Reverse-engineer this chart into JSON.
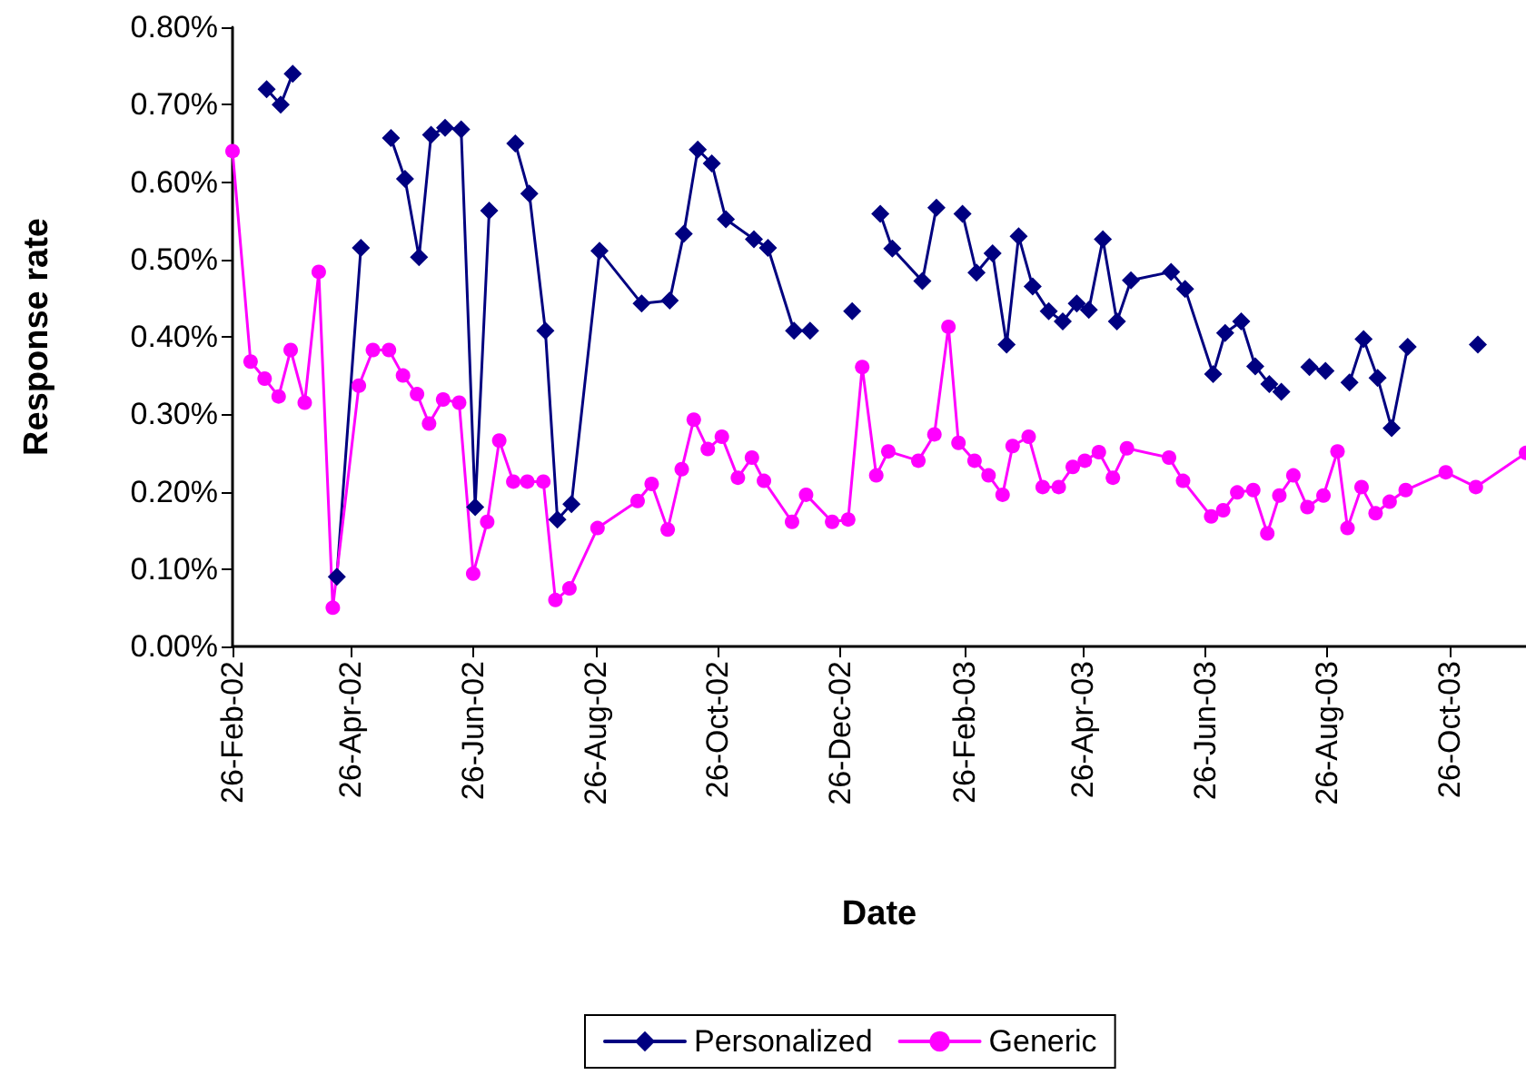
{
  "chart_data": {
    "type": "line",
    "xlabel": "Date",
    "ylabel": "Response rate",
    "grid": false,
    "legend": "bottom",
    "line_style": "solid",
    "xlim": [
      "2002-02-26",
      "2003-12-03"
    ],
    "xticks": [
      {
        "value": "2002-02-26",
        "label": "26-Feb-02"
      },
      {
        "value": "2002-04-26",
        "label": "26-Apr-02"
      },
      {
        "value": "2002-06-26",
        "label": "26-Jun-02"
      },
      {
        "value": "2002-08-26",
        "label": "26-Aug-02"
      },
      {
        "value": "2002-10-26",
        "label": "26-Oct-02"
      },
      {
        "value": "2002-12-26",
        "label": "26-Dec-02"
      },
      {
        "value": "2003-02-26",
        "label": "26-Feb-03"
      },
      {
        "value": "2003-04-26",
        "label": "26-Apr-03"
      },
      {
        "value": "2003-06-26",
        "label": "26-Jun-03"
      },
      {
        "value": "2003-08-26",
        "label": "26-Aug-03"
      },
      {
        "value": "2003-10-26",
        "label": "26-Oct-03"
      }
    ],
    "ylim": [
      0,
      0.8
    ],
    "yticks": [
      {
        "value": 0,
        "label": "0.00%"
      },
      {
        "value": 0.1,
        "label": "0.10%"
      },
      {
        "value": 0.2,
        "label": "0.20%"
      },
      {
        "value": 0.3,
        "label": "0.30%"
      },
      {
        "value": 0.4,
        "label": "0.40%"
      },
      {
        "value": 0.5,
        "label": "0.50%"
      },
      {
        "value": 0.6,
        "label": "0.60%"
      },
      {
        "value": 0.7,
        "label": "0.70%"
      },
      {
        "value": 0.8,
        "label": "0.80%"
      }
    ],
    "series": [
      {
        "name": "Personalized",
        "color": "#000080",
        "marker": "diamond",
        "x": [
          "2002-03-15",
          "2002-03-22",
          "2002-03-28",
          "2002-04-10",
          "2002-04-19",
          "2002-05-01",
          "2002-05-08",
          "2002-05-16",
          "2002-05-23",
          "2002-05-30",
          "2002-06-05",
          "2002-06-12",
          "2002-06-20",
          "2002-06-27",
          "2002-07-04",
          "2002-07-10",
          "2002-07-17",
          "2002-07-24",
          "2002-08-01",
          "2002-08-07",
          "2002-08-14",
          "2002-08-28",
          "2002-09-18",
          "2002-10-02",
          "2002-10-09",
          "2002-10-16",
          "2002-10-23",
          "2002-10-30",
          "2002-11-13",
          "2002-11-20",
          "2002-12-03",
          "2002-12-11",
          "2002-12-20",
          "2003-01-01",
          "2003-01-08",
          "2003-01-15",
          "2003-01-21",
          "2003-02-05",
          "2003-02-12",
          "2003-02-18",
          "2003-02-25",
          "2003-03-04",
          "2003-03-12",
          "2003-03-19",
          "2003-03-25",
          "2003-04-01",
          "2003-04-09",
          "2003-04-16",
          "2003-04-23",
          "2003-04-29",
          "2003-05-06",
          "2003-05-13",
          "2003-05-20",
          "2003-06-09",
          "2003-06-16",
          "2003-06-30",
          "2003-07-06",
          "2003-07-14",
          "2003-07-21",
          "2003-07-28",
          "2003-08-03",
          "2003-08-10",
          "2003-08-17",
          "2003-08-25",
          "2003-08-31",
          "2003-09-06",
          "2003-09-13",
          "2003-09-20",
          "2003-09-27",
          "2003-10-05",
          "2003-10-20",
          "2003-11-09"
        ],
        "values": [
          0.72,
          0.7,
          0.74,
          null,
          0.09,
          0.515,
          null,
          0.657,
          0.604,
          0.503,
          0.661,
          0.67,
          0.668,
          0.18,
          0.563,
          null,
          0.65,
          0.585,
          0.408,
          0.164,
          0.184,
          0.511,
          0.443,
          0.447,
          0.533,
          0.642,
          0.624,
          0.552,
          0.526,
          0.515,
          0.408,
          0.408,
          null,
          0.433,
          null,
          0.559,
          0.514,
          0.472,
          0.567,
          null,
          0.559,
          0.483,
          0.508,
          0.39,
          0.53,
          0.465,
          0.433,
          0.42,
          0.443,
          0.435,
          0.526,
          0.42,
          0.473,
          0.484,
          0.462,
          0.352,
          0.405,
          0.42,
          0.362,
          0.339,
          0.329,
          null,
          0.361,
          0.356,
          null,
          0.341,
          0.397,
          0.347,
          0.282,
          0.387,
          null,
          0.39
        ]
      },
      {
        "name": "Generic",
        "color": "#ff00ff",
        "marker": "circle",
        "x": [
          "2002-02-26",
          "2002-03-07",
          "2002-03-14",
          "2002-03-21",
          "2002-03-27",
          "2002-04-03",
          "2002-04-10",
          "2002-04-17",
          "2002-04-30",
          "2002-05-07",
          "2002-05-15",
          "2002-05-22",
          "2002-05-29",
          "2002-06-04",
          "2002-06-11",
          "2002-06-19",
          "2002-06-26",
          "2002-07-03",
          "2002-07-09",
          "2002-07-16",
          "2002-07-23",
          "2002-07-31",
          "2002-08-06",
          "2002-08-13",
          "2002-08-27",
          "2002-09-16",
          "2002-09-23",
          "2002-10-01",
          "2002-10-08",
          "2002-10-14",
          "2002-10-21",
          "2002-10-28",
          "2002-11-05",
          "2002-11-12",
          "2002-11-18",
          "2002-12-02",
          "2002-12-09",
          "2002-12-22",
          "2002-12-30",
          "2003-01-06",
          "2003-01-13",
          "2003-01-19",
          "2003-02-03",
          "2003-02-11",
          "2003-02-18",
          "2003-02-23",
          "2003-03-03",
          "2003-03-10",
          "2003-03-17",
          "2003-03-22",
          "2003-03-30",
          "2003-04-06",
          "2003-04-14",
          "2003-04-21",
          "2003-04-27",
          "2003-05-04",
          "2003-05-11",
          "2003-05-18",
          "2003-06-08",
          "2003-06-15",
          "2003-06-29",
          "2003-07-05",
          "2003-07-12",
          "2003-07-20",
          "2003-07-27",
          "2003-08-02",
          "2003-08-09",
          "2003-08-16",
          "2003-08-24",
          "2003-08-31",
          "2003-09-05",
          "2003-09-12",
          "2003-09-19",
          "2003-09-26",
          "2003-10-04",
          "2003-10-24",
          "2003-11-08",
          "2003-12-03"
        ],
        "values": [
          0.64,
          0.368,
          0.346,
          0.323,
          0.383,
          0.315,
          0.484,
          0.05,
          0.337,
          0.383,
          0.383,
          0.35,
          0.326,
          0.288,
          0.319,
          0.315,
          0.094,
          0.161,
          0.266,
          0.213,
          0.213,
          0.213,
          0.06,
          0.075,
          0.153,
          0.188,
          0.21,
          0.151,
          0.229,
          0.293,
          0.255,
          0.271,
          0.218,
          0.244,
          0.214,
          0.161,
          0.196,
          0.161,
          0.164,
          0.361,
          0.221,
          0.252,
          0.24,
          0.274,
          0.413,
          0.263,
          0.24,
          0.221,
          0.196,
          0.259,
          0.271,
          0.206,
          0.206,
          0.232,
          0.24,
          0.251,
          0.218,
          0.256,
          0.244,
          0.214,
          0.168,
          0.176,
          0.199,
          0.202,
          0.146,
          0.195,
          0.221,
          0.18,
          0.195,
          0.252,
          0.153,
          0.206,
          0.172,
          0.187,
          0.202,
          0.225,
          0.206,
          0.25
        ]
      }
    ]
  }
}
